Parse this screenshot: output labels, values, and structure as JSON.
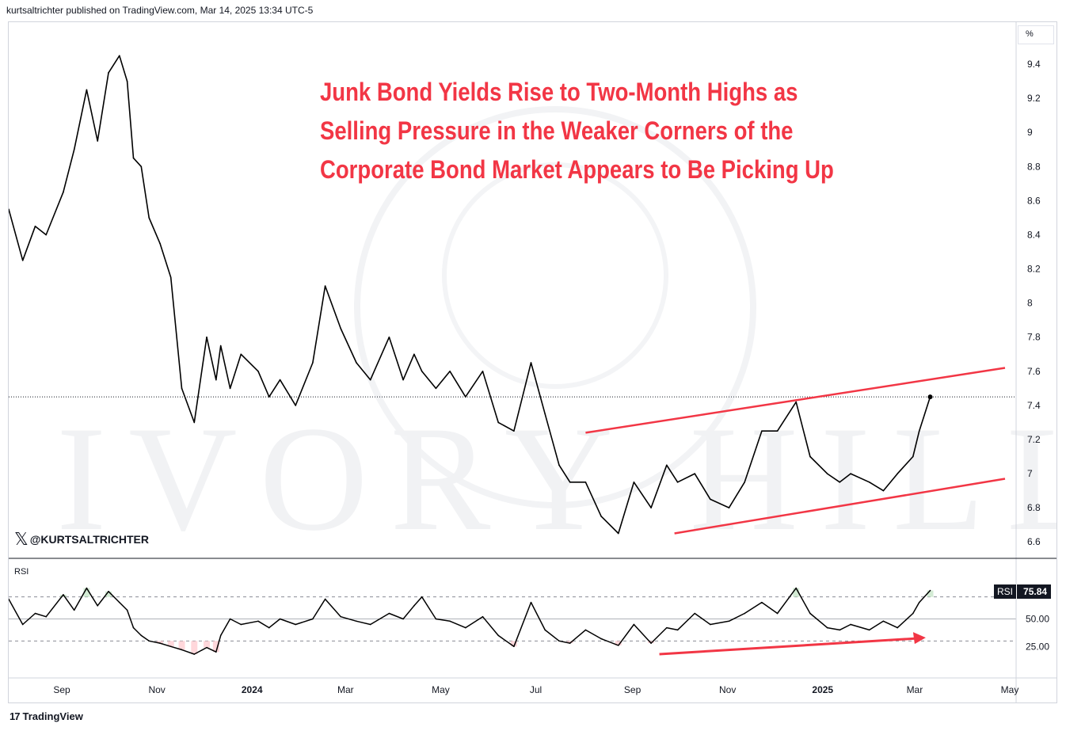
{
  "header": {
    "text": "kurtsaltrichter published on TradingView.com, Mar 14, 2025 13:34 UTC-5"
  },
  "footer": {
    "logo_text": "TradingView"
  },
  "overlay": {
    "headline": "Junk Bond Yields Rise to Two-Month Highs as Selling Pressure in the Weaker Corners of the Corporate Bond Market Appears to Be Picking Up",
    "handle": "@KURTSALTRICHTER",
    "handle_icon": "x-logo-icon",
    "watermark_text": "IVORY HILL"
  },
  "colors": {
    "line": "#000000",
    "annotation": "#f23645",
    "grid": "#e0e3eb",
    "overbought_fill": "#c8e6c9",
    "oversold_fill": "#ffcdd2"
  },
  "chart_data": [
    {
      "type": "line",
      "title": "",
      "ylabel": "",
      "unit": "%",
      "ylim": [
        6.55,
        9.6
      ],
      "y_ticks": [
        "6.6",
        "6.8",
        "7",
        "7.2",
        "7.4",
        "7.6",
        "7.8",
        "8",
        "8.2",
        "8.4",
        "8.6",
        "8.8",
        "9",
        "9.2",
        "9.4"
      ],
      "x_ticks": [
        "Sep",
        "Nov",
        "2024",
        "Mar",
        "May",
        "Jul",
        "Sep",
        "Nov",
        "2025",
        "Mar",
        "May"
      ],
      "x_tick_dates": [
        "2023-09-01",
        "2023-11-01",
        "2024-01-01",
        "2024-03-01",
        "2024-05-01",
        "2024-07-01",
        "2024-09-01",
        "2024-11-01",
        "2025-01-01",
        "2025-03-01",
        "2025-05-01"
      ],
      "series": [
        {
          "x": [
            "2023-08-01",
            "2023-08-10",
            "2023-08-18",
            "2023-08-25",
            "2023-09-05",
            "2023-09-12",
            "2023-09-20",
            "2023-09-27",
            "2023-10-04",
            "2023-10-11",
            "2023-10-16",
            "2023-10-20",
            "2023-10-25",
            "2023-10-30",
            "2023-11-06",
            "2023-11-13",
            "2023-11-20",
            "2023-11-28",
            "2023-12-06",
            "2023-12-12",
            "2023-12-15",
            "2023-12-21",
            "2023-12-28",
            "2024-01-08",
            "2024-01-15",
            "2024-01-22",
            "2024-02-01",
            "2024-02-12",
            "2024-02-20",
            "2024-03-01",
            "2024-03-11",
            "2024-03-20",
            "2024-04-01",
            "2024-04-10",
            "2024-04-17",
            "2024-04-22",
            "2024-05-01",
            "2024-05-10",
            "2024-05-20",
            "2024-05-31",
            "2024-06-10",
            "2024-06-20",
            "2024-07-01",
            "2024-07-10",
            "2024-07-19",
            "2024-07-26",
            "2024-08-05",
            "2024-08-15",
            "2024-08-26",
            "2024-09-05",
            "2024-09-16",
            "2024-09-26",
            "2024-10-03",
            "2024-10-14",
            "2024-10-24",
            "2024-11-05",
            "2024-11-15",
            "2024-11-26",
            "2024-12-06",
            "2024-12-18",
            "2024-12-27",
            "2025-01-07",
            "2025-01-15",
            "2025-01-22",
            "2025-02-03",
            "2025-02-12",
            "2025-02-21",
            "2025-03-03",
            "2025-03-07",
            "2025-03-14"
          ],
          "values": [
            8.55,
            8.25,
            8.45,
            8.4,
            8.65,
            8.9,
            9.25,
            8.95,
            9.35,
            9.45,
            9.3,
            8.85,
            8.8,
            8.5,
            8.35,
            8.15,
            7.5,
            7.3,
            7.8,
            7.55,
            7.75,
            7.5,
            7.7,
            7.6,
            7.45,
            7.55,
            7.4,
            7.65,
            8.1,
            7.85,
            7.65,
            7.55,
            7.8,
            7.55,
            7.7,
            7.6,
            7.5,
            7.6,
            7.45,
            7.6,
            7.3,
            7.25,
            7.65,
            7.35,
            7.05,
            6.95,
            6.95,
            6.75,
            6.65,
            6.95,
            6.8,
            7.05,
            6.95,
            7.0,
            6.85,
            6.8,
            6.95,
            7.25,
            7.25,
            7.42,
            7.1,
            7.0,
            6.95,
            7.0,
            6.95,
            6.9,
            7.0,
            7.1,
            7.25,
            7.45
          ]
        }
      ],
      "last_value": 7.45,
      "trendlines": [
        {
          "from": [
            "2024-08-05",
            7.24
          ],
          "to": [
            "2025-05-01",
            7.62
          ]
        },
        {
          "from": [
            "2024-10-01",
            6.65
          ],
          "to": [
            "2025-05-01",
            6.97
          ]
        }
      ]
    },
    {
      "type": "line",
      "title": "RSI",
      "ylim": [
        0,
        100
      ],
      "y_ticks": [
        "25.00",
        "50.00"
      ],
      "levels": [
        30,
        50,
        70
      ],
      "last_value": "75.84",
      "badge_label": "RSI",
      "series": [
        {
          "x": [
            "2023-08-01",
            "2023-08-10",
            "2023-08-18",
            "2023-08-25",
            "2023-09-05",
            "2023-09-12",
            "2023-09-20",
            "2023-09-27",
            "2023-10-04",
            "2023-10-11",
            "2023-10-16",
            "2023-10-20",
            "2023-10-25",
            "2023-10-30",
            "2023-11-06",
            "2023-11-13",
            "2023-11-20",
            "2023-11-28",
            "2023-12-06",
            "2023-12-12",
            "2023-12-15",
            "2023-12-21",
            "2023-12-28",
            "2024-01-08",
            "2024-01-15",
            "2024-01-22",
            "2024-02-01",
            "2024-02-12",
            "2024-02-20",
            "2024-03-01",
            "2024-03-11",
            "2024-03-20",
            "2024-04-01",
            "2024-04-10",
            "2024-04-17",
            "2024-04-22",
            "2024-05-01",
            "2024-05-10",
            "2024-05-20",
            "2024-05-31",
            "2024-06-10",
            "2024-06-20",
            "2024-07-01",
            "2024-07-10",
            "2024-07-19",
            "2024-07-26",
            "2024-08-05",
            "2024-08-15",
            "2024-08-26",
            "2024-09-05",
            "2024-09-16",
            "2024-09-26",
            "2024-10-03",
            "2024-10-14",
            "2024-10-24",
            "2024-11-05",
            "2024-11-15",
            "2024-11-26",
            "2024-12-06",
            "2024-12-18",
            "2024-12-27",
            "2025-01-07",
            "2025-01-15",
            "2025-01-22",
            "2025-02-03",
            "2025-02-12",
            "2025-02-21",
            "2025-03-03",
            "2025-03-07",
            "2025-03-14"
          ],
          "values": [
            68,
            45,
            55,
            52,
            72,
            58,
            78,
            62,
            75,
            65,
            58,
            42,
            35,
            30,
            28,
            25,
            22,
            18,
            24,
            20,
            35,
            50,
            45,
            48,
            42,
            50,
            45,
            50,
            68,
            52,
            48,
            45,
            55,
            50,
            62,
            70,
            50,
            48,
            42,
            52,
            35,
            25,
            65,
            40,
            30,
            28,
            40,
            32,
            26,
            45,
            28,
            42,
            40,
            55,
            45,
            48,
            55,
            65,
            55,
            78,
            55,
            42,
            40,
            45,
            40,
            48,
            42,
            55,
            65,
            75.84
          ]
        }
      ],
      "annotation_arrow": {
        "from": [
          "2024-09-01",
          18
        ],
        "to": [
          "2025-03-01",
          33
        ]
      }
    }
  ]
}
